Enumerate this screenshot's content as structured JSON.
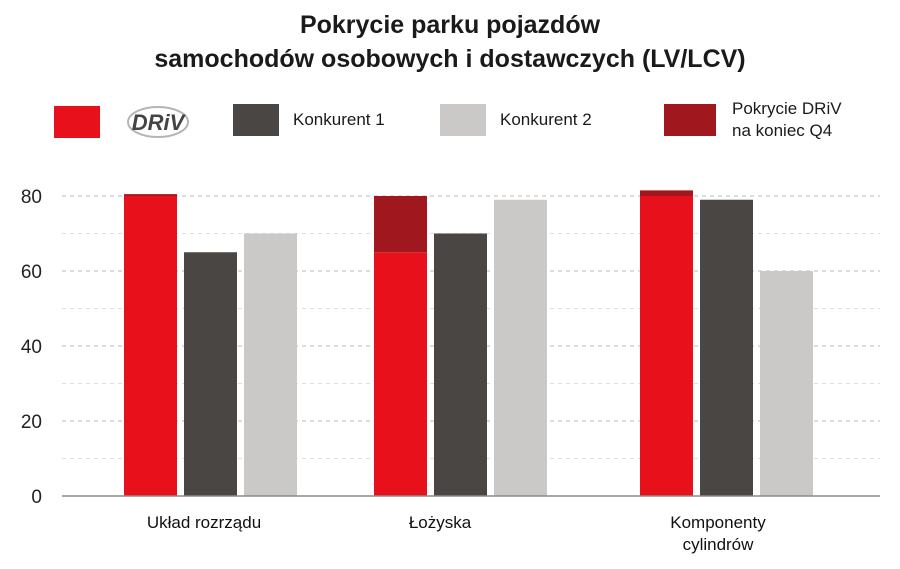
{
  "chart_data": {
    "type": "bar",
    "title_lines": [
      "Pokrycie parku pojazdów",
      "samochodów osobowych i dostawczych (LV/LCV)"
    ],
    "categories": [
      [
        "Układ rozrządu"
      ],
      [
        "Łożyska"
      ],
      [
        "Komponenty",
        "cylindrów"
      ]
    ],
    "series": [
      {
        "name": "DRiV",
        "color": "#e8101a",
        "values": [
          80,
          65,
          80
        ]
      },
      {
        "name": "Konkurent 1",
        "color": "#4a4643",
        "values": [
          65,
          70,
          79
        ]
      },
      {
        "name": "Konkurent 2",
        "color": "#cbc8c8",
        "values": [
          70,
          79,
          60
        ]
      }
    ],
    "stack_on_series_0": {
      "name": "Pokrycie DRiV na koniec Q4",
      "color": "#a0181e",
      "values": [
        0.5,
        15,
        1.5
      ]
    },
    "legend_order": [
      "DRiV",
      "Konkurent 1",
      "Konkurent 2",
      "Pokrycie DRiV na koniec Q4"
    ],
    "legend_labels": {
      "k1": "Konkurent 1",
      "k2": "Konkurent 2",
      "q4_line1": "Pokrycie DRiV",
      "q4_line2": "na koniec Q4"
    },
    "logo_text": "DRiV",
    "ylim": [
      0,
      80
    ],
    "yticks": [
      0,
      20,
      40,
      60,
      80
    ],
    "grid": true,
    "legend_position": "top"
  }
}
